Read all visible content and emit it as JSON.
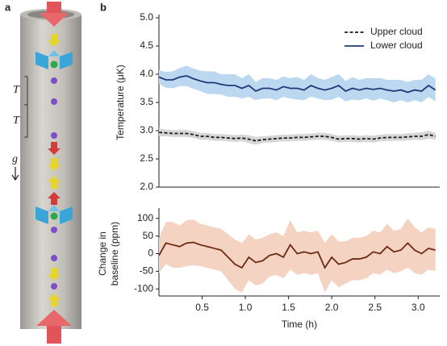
{
  "panel_labels": [
    "a",
    "b"
  ],
  "diagram": {
    "period_labels": [
      "T",
      "T"
    ],
    "gravity_label": "g"
  },
  "chart_data": [
    {
      "type": "line",
      "ylabel": "Temperature (μK)",
      "x": [
        0,
        0.08,
        0.16,
        0.24,
        0.32,
        0.4,
        0.48,
        0.56,
        0.64,
        0.72,
        0.8,
        0.88,
        0.96,
        1.04,
        1.12,
        1.2,
        1.28,
        1.36,
        1.44,
        1.52,
        1.6,
        1.68,
        1.76,
        1.84,
        1.92,
        2,
        2.08,
        2.16,
        2.24,
        2.32,
        2.4,
        2.48,
        2.56,
        2.64,
        2.72,
        2.8,
        2.88,
        2.96,
        3.04,
        3.12,
        3.2
      ],
      "xlim": [
        0,
        3.25
      ],
      "ylim": [
        2.0,
        5.0
      ],
      "yticks": [
        {
          "value": 2,
          "label": "2.0"
        },
        2.5,
        {
          "value": 3,
          "label": "3.0"
        },
        3.5,
        {
          "value": 4,
          "label": "4.0"
        },
        4.5,
        {
          "value": 5,
          "label": "5.0"
        }
      ],
      "legend": "upper right",
      "series": [
        {
          "name": "Upper cloud",
          "color": "#1a1a1a",
          "band_color": "#d6d6d6",
          "line_style": "dashed",
          "values": [
            2.97,
            2.96,
            2.95,
            2.95,
            2.95,
            2.93,
            2.9,
            2.9,
            2.88,
            2.88,
            2.87,
            2.86,
            2.87,
            2.85,
            2.82,
            2.84,
            2.85,
            2.86,
            2.87,
            2.87,
            2.88,
            2.88,
            2.89,
            2.9,
            2.9,
            2.88,
            2.85,
            2.86,
            2.86,
            2.85,
            2.86,
            2.85,
            2.87,
            2.88,
            2.88,
            2.88,
            2.89,
            2.9,
            2.9,
            2.93,
            2.9
          ],
          "errors": [
            0.07,
            0.06,
            0.06,
            0.06,
            0.06,
            0.06,
            0.06,
            0.06,
            0.06,
            0.06,
            0.06,
            0.06,
            0.06,
            0.07,
            0.07,
            0.06,
            0.06,
            0.06,
            0.06,
            0.06,
            0.06,
            0.06,
            0.06,
            0.06,
            0.06,
            0.06,
            0.06,
            0.06,
            0.06,
            0.06,
            0.06,
            0.06,
            0.06,
            0.06,
            0.06,
            0.06,
            0.06,
            0.06,
            0.07,
            0.07,
            0.06
          ]
        },
        {
          "name": "Lower cloud",
          "color": "#1f3a78",
          "band_color": "#bcd8f0",
          "line_style": "solid",
          "values": [
            3.95,
            3.9,
            3.9,
            3.95,
            3.97,
            3.92,
            3.88,
            3.85,
            3.85,
            3.82,
            3.8,
            3.8,
            3.75,
            3.8,
            3.7,
            3.75,
            3.75,
            3.72,
            3.78,
            3.75,
            3.75,
            3.72,
            3.8,
            3.75,
            3.72,
            3.75,
            3.8,
            3.7,
            3.75,
            3.72,
            3.75,
            3.73,
            3.75,
            3.72,
            3.7,
            3.72,
            3.68,
            3.72,
            3.7,
            3.8,
            3.72
          ],
          "errors": [
            0.12,
            0.14,
            0.15,
            0.16,
            0.18,
            0.18,
            0.18,
            0.2,
            0.2,
            0.18,
            0.2,
            0.2,
            0.18,
            0.2,
            0.16,
            0.18,
            0.18,
            0.18,
            0.18,
            0.18,
            0.2,
            0.18,
            0.2,
            0.18,
            0.18,
            0.2,
            0.2,
            0.18,
            0.2,
            0.18,
            0.18,
            0.2,
            0.18,
            0.18,
            0.2,
            0.18,
            0.18,
            0.18,
            0.2,
            0.2,
            0.2
          ]
        }
      ]
    },
    {
      "type": "line",
      "xlabel": "Time (h)",
      "ylabel": [
        "Change in",
        "baseline (ppm)"
      ],
      "x": [
        0,
        0.08,
        0.16,
        0.24,
        0.32,
        0.4,
        0.48,
        0.56,
        0.64,
        0.72,
        0.8,
        0.88,
        0.96,
        1.04,
        1.12,
        1.2,
        1.28,
        1.36,
        1.44,
        1.52,
        1.6,
        1.68,
        1.76,
        1.84,
        1.92,
        2,
        2.08,
        2.16,
        2.24,
        2.32,
        2.4,
        2.48,
        2.56,
        2.64,
        2.72,
        2.8,
        2.88,
        2.96,
        3.04,
        3.12,
        3.2
      ],
      "xlim": [
        0,
        3.25
      ],
      "ylim": [
        -120,
        120
      ],
      "xticks": [
        0.5,
        {
          "value": 1,
          "label": "1.0"
        },
        1.5,
        {
          "value": 2,
          "label": "2.0"
        },
        2.5,
        {
          "value": 3,
          "label": "3.0"
        }
      ],
      "yticks": [
        -100,
        -50,
        0,
        50,
        100
      ],
      "series": [
        {
          "color": "#6b2a10",
          "band_color": "#f5d3c3",
          "line_style": "solid",
          "values": [
            -5,
            30,
            25,
            20,
            30,
            32,
            25,
            20,
            15,
            10,
            -10,
            -30,
            -40,
            -10,
            -25,
            -20,
            -5,
            0,
            -10,
            25,
            0,
            5,
            0,
            5,
            -40,
            -10,
            -30,
            -25,
            -15,
            -15,
            -10,
            5,
            0,
            20,
            5,
            10,
            30,
            10,
            0,
            15,
            10
          ],
          "errors": [
            50,
            60,
            65,
            60,
            65,
            65,
            60,
            60,
            60,
            60,
            65,
            70,
            70,
            65,
            65,
            65,
            60,
            60,
            60,
            70,
            60,
            60,
            60,
            60,
            70,
            65,
            65,
            60,
            60,
            60,
            60,
            60,
            60,
            65,
            60,
            60,
            70,
            65,
            60,
            60,
            60
          ]
        }
      ]
    }
  ]
}
